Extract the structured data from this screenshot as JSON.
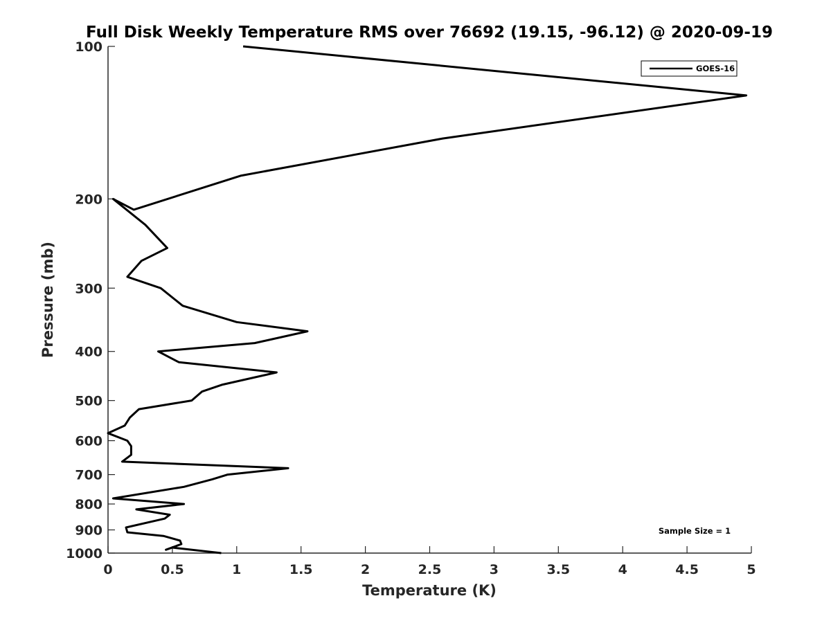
{
  "chart_data": {
    "type": "line",
    "title": "Full Disk Weekly Temperature RMS over 76692 (19.15, -96.12) @ 2020-09-19",
    "xlabel": "Temperature (K)",
    "ylabel": "Pressure (mb)",
    "xlim": [
      0,
      5
    ],
    "ylim": [
      100,
      1000
    ],
    "y_scale": "log",
    "y_reversed": true,
    "x_ticks": [
      0,
      0.5,
      1,
      1.5,
      2,
      2.5,
      3,
      3.5,
      4,
      4.5,
      5
    ],
    "x_tick_labels": [
      "0",
      "0.5",
      "1",
      "1.5",
      "2",
      "2.5",
      "3",
      "3.5",
      "4",
      "4.5",
      "5"
    ],
    "y_ticks": [
      100,
      200,
      300,
      400,
      500,
      600,
      700,
      800,
      900,
      1000
    ],
    "y_tick_labels": [
      "100",
      "200",
      "300",
      "400",
      "500",
      "600",
      "700",
      "800",
      "900",
      "1000"
    ],
    "grid": false,
    "legend_position": "top-right",
    "annotation": "Sample Size = 1",
    "series": [
      {
        "name": "GOES-16",
        "color": "#000000",
        "points": [
          [
            1.05,
            100
          ],
          [
            4.96,
            125
          ],
          [
            2.6,
            152
          ],
          [
            1.03,
            180
          ],
          [
            0.2,
            210
          ],
          [
            0.04,
            200
          ],
          [
            0.29,
            225
          ],
          [
            0.46,
            250
          ],
          [
            0.26,
            265
          ],
          [
            0.15,
            285
          ],
          [
            0.41,
            300
          ],
          [
            0.58,
            325
          ],
          [
            1.0,
            350
          ],
          [
            1.55,
            365
          ],
          [
            1.14,
            385
          ],
          [
            0.39,
            400
          ],
          [
            0.55,
            420
          ],
          [
            1.31,
            440
          ],
          [
            0.89,
            465
          ],
          [
            0.73,
            480
          ],
          [
            0.65,
            500
          ],
          [
            0.24,
            520
          ],
          [
            0.17,
            540
          ],
          [
            0.13,
            560
          ],
          [
            0.0,
            580
          ],
          [
            0.15,
            600
          ],
          [
            0.18,
            615
          ],
          [
            0.18,
            640
          ],
          [
            0.11,
            660
          ],
          [
            1.4,
            680
          ],
          [
            0.93,
            700
          ],
          [
            0.81,
            715
          ],
          [
            0.59,
            740
          ],
          [
            0.04,
            780
          ],
          [
            0.59,
            800
          ],
          [
            0.22,
            820
          ],
          [
            0.48,
            840
          ],
          [
            0.44,
            855
          ],
          [
            0.14,
            890
          ],
          [
            0.15,
            910
          ],
          [
            0.43,
            925
          ],
          [
            0.56,
            945
          ],
          [
            0.57,
            960
          ],
          [
            0.45,
            985
          ],
          [
            0.5,
            975
          ],
          [
            0.88,
            1000
          ]
        ]
      }
    ]
  }
}
